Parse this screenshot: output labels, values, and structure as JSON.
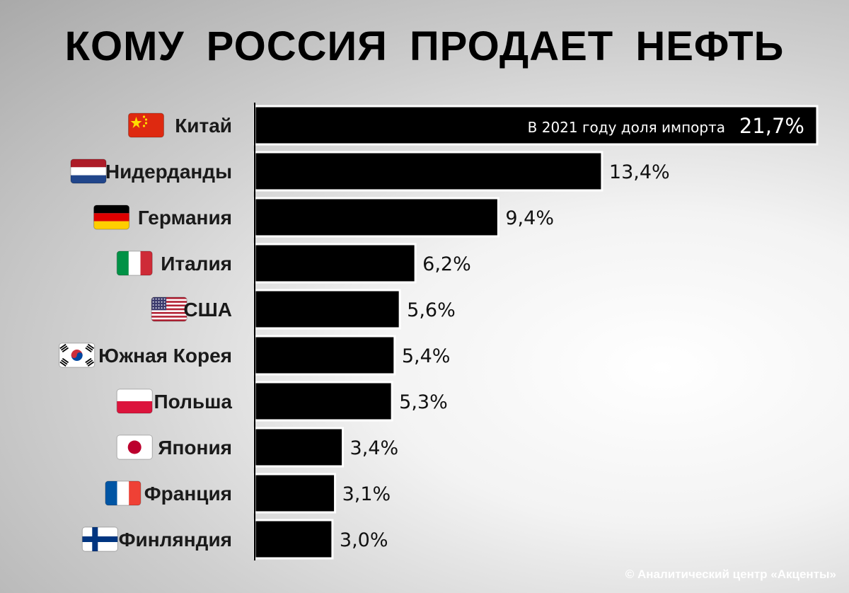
{
  "title": "КОМУ РОССИЯ ПРОДАЕТ НЕФТЬ",
  "credit": "© Аналитический центр «Акценты»",
  "chart_data": {
    "type": "bar",
    "orientation": "horizontal",
    "unit": "%",
    "categories": [
      "Китай",
      "Нидерданды",
      "Германия",
      "Италия",
      "США",
      "Южная Корея",
      "Польша",
      "Япония",
      "Франция",
      "Финляндия"
    ],
    "values": [
      21.7,
      13.4,
      9.4,
      6.2,
      5.6,
      5.4,
      5.3,
      3.4,
      3.1,
      3.0
    ],
    "value_labels": [
      "21,7%",
      "13,4%",
      "9,4%",
      "6,2%",
      "5,6%",
      "5,4%",
      "5,3%",
      "3,4%",
      "3,1%",
      "3,0%"
    ],
    "flags": [
      "flag-china-icon",
      "flag-netherlands-icon",
      "flag-germany-icon",
      "flag-italy-icon",
      "flag-usa-icon",
      "flag-south-korea-icon",
      "flag-poland-icon",
      "flag-japan-icon",
      "flag-france-icon",
      "flag-finland-icon"
    ],
    "annotation": {
      "text": "В 2021 году доля импорта",
      "value": "21,7%"
    },
    "xlim": [
      0,
      21.7
    ],
    "grid": false,
    "legend": "none",
    "colors": {
      "bar": "#000000",
      "bar_outline": "#ffffff",
      "annotation_text": "#ffffff",
      "axis": "#000000"
    }
  }
}
